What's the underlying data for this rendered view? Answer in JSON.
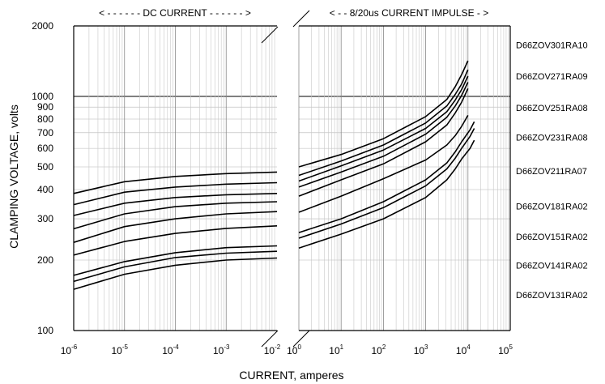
{
  "chart_data": {
    "type": "line",
    "title": "",
    "xlabel": "CURRENT, amperes",
    "ylabel": "CLAMPING VOLTAGE, volts",
    "y_scale": "log",
    "ylim": [
      100,
      2000
    ],
    "x_scale": "log",
    "grid": true,
    "regions": {
      "dc": {
        "header": "< - - - - - - DC CURRENT - - - - - - >",
        "xlim_exp": [
          -6,
          -2
        ]
      },
      "impulse": {
        "header": "< - - 8/20us CURRENT IMPULSE - >",
        "xlim_exp": [
          0,
          5
        ]
      }
    },
    "y_tick_labels": [
      {
        "value": 100,
        "label": "100"
      },
      {
        "value": 200,
        "label": "200"
      },
      {
        "value": 300,
        "label": "300"
      },
      {
        "value": 400,
        "label": "400"
      },
      {
        "value": 500,
        "label": "500"
      },
      {
        "value": 600,
        "label": "600"
      },
      {
        "value": 700,
        "label": "700"
      },
      {
        "value": 800,
        "label": "800"
      },
      {
        "value": 900,
        "label": "900"
      },
      {
        "value": 1000,
        "label": "1000"
      },
      {
        "value": 2000,
        "label": "2000"
      }
    ],
    "x_tick_labels": [
      {
        "region": "dc",
        "exp": -6,
        "base": "10",
        "sup": "-6"
      },
      {
        "region": "dc",
        "exp": -5,
        "base": "10",
        "sup": "-5"
      },
      {
        "region": "dc",
        "exp": -4,
        "base": "10",
        "sup": "-4"
      },
      {
        "region": "dc",
        "exp": -3,
        "base": "10",
        "sup": "-3"
      },
      {
        "region": "dc",
        "exp": -2,
        "base": "10",
        "sup": "-2"
      },
      {
        "region": "impulse",
        "exp": 0,
        "base": "10",
        "sup": "0"
      },
      {
        "region": "impulse",
        "exp": 1,
        "base": "10",
        "sup": "1"
      },
      {
        "region": "impulse",
        "exp": 2,
        "base": "10",
        "sup": "2"
      },
      {
        "region": "impulse",
        "exp": 3,
        "base": "10",
        "sup": "3"
      },
      {
        "region": "impulse",
        "exp": 4,
        "base": "10",
        "sup": "4"
      },
      {
        "region": "impulse",
        "exp": 5,
        "base": "10",
        "sup": "5"
      }
    ],
    "series_labels": [
      {
        "text": "D66ZOV301RA10",
        "voltage": 1660
      },
      {
        "text": "D66ZOV271RA09",
        "voltage": 1220
      },
      {
        "text": "D66ZOV251RA08",
        "voltage": 895
      },
      {
        "text": "D66ZOV231RA08",
        "voltage": 670
      },
      {
        "text": "D66ZOV211RA07",
        "voltage": 480
      },
      {
        "text": "D66ZOV181RA02",
        "voltage": 340
      },
      {
        "text": "D66ZOV151RA02",
        "voltage": 252
      },
      {
        "text": "D66ZOV141RA02",
        "voltage": 190
      },
      {
        "text": "D66ZOV131RA02",
        "voltage": 142
      }
    ],
    "series": [
      {
        "dc": [
          [
            -6,
            385
          ],
          [
            -5,
            432
          ],
          [
            -4,
            455
          ],
          [
            -3,
            468
          ],
          [
            -2,
            475
          ]
        ],
        "impulse": [
          [
            0,
            500
          ],
          [
            1,
            565
          ],
          [
            2,
            660
          ],
          [
            3,
            820
          ],
          [
            3.5,
            970
          ],
          [
            3.7,
            1100
          ],
          [
            3.85,
            1240
          ],
          [
            4,
            1420
          ]
        ]
      },
      {
        "dc": [
          [
            -6,
            345
          ],
          [
            -5,
            390
          ],
          [
            -4,
            410
          ],
          [
            -3,
            422
          ],
          [
            -2,
            428
          ]
        ],
        "impulse": [
          [
            0,
            460
          ],
          [
            1,
            530
          ],
          [
            2,
            620
          ],
          [
            3,
            770
          ],
          [
            3.5,
            910
          ],
          [
            3.7,
            1020
          ],
          [
            3.85,
            1130
          ],
          [
            4,
            1300
          ]
        ]
      },
      {
        "dc": [
          [
            -6,
            310
          ],
          [
            -5,
            350
          ],
          [
            -4,
            370
          ],
          [
            -3,
            380
          ],
          [
            -2,
            385
          ]
        ],
        "impulse": [
          [
            0,
            435
          ],
          [
            1,
            505
          ],
          [
            2,
            590
          ],
          [
            3,
            730
          ],
          [
            3.5,
            860
          ],
          [
            3.7,
            965
          ],
          [
            3.85,
            1070
          ],
          [
            4,
            1220
          ]
        ]
      },
      {
        "dc": [
          [
            -6,
            272
          ],
          [
            -5,
            315
          ],
          [
            -4,
            338
          ],
          [
            -3,
            350
          ],
          [
            -2,
            355
          ]
        ],
        "impulse": [
          [
            0,
            410
          ],
          [
            1,
            475
          ],
          [
            2,
            555
          ],
          [
            3,
            690
          ],
          [
            3.5,
            815
          ],
          [
            3.7,
            910
          ],
          [
            3.85,
            1010
          ],
          [
            4,
            1150
          ]
        ]
      },
      {
        "dc": [
          [
            -6,
            238
          ],
          [
            -5,
            278
          ],
          [
            -4,
            300
          ],
          [
            -3,
            315
          ],
          [
            -2,
            322
          ]
        ],
        "impulse": [
          [
            0,
            375
          ],
          [
            1,
            440
          ],
          [
            2,
            515
          ],
          [
            3,
            640
          ],
          [
            3.5,
            755
          ],
          [
            3.7,
            850
          ],
          [
            3.85,
            945
          ],
          [
            4,
            1080
          ]
        ]
      },
      {
        "dc": [
          [
            -6,
            210
          ],
          [
            -5,
            240
          ],
          [
            -4,
            260
          ],
          [
            -3,
            273
          ],
          [
            -2,
            280
          ]
        ],
        "impulse": [
          [
            0,
            320
          ],
          [
            1,
            375
          ],
          [
            2,
            445
          ],
          [
            3,
            535
          ],
          [
            3.5,
            620
          ],
          [
            3.7,
            680
          ],
          [
            3.85,
            745
          ],
          [
            4,
            830
          ]
        ]
      },
      {
        "dc": [
          [
            -6,
            172
          ],
          [
            -5,
            197
          ],
          [
            -4,
            215
          ],
          [
            -3,
            226
          ],
          [
            -2,
            230
          ]
        ],
        "impulse": [
          [
            0,
            262
          ],
          [
            1,
            300
          ],
          [
            2,
            355
          ],
          [
            3,
            440
          ],
          [
            3.5,
            520
          ],
          [
            3.7,
            580
          ],
          [
            3.85,
            640
          ],
          [
            4.05,
            720
          ],
          [
            4.15,
            780
          ]
        ]
      },
      {
        "dc": [
          [
            -6,
            162
          ],
          [
            -5,
            187
          ],
          [
            -4,
            205
          ],
          [
            -3,
            214
          ],
          [
            -2,
            218
          ]
        ],
        "impulse": [
          [
            0,
            248
          ],
          [
            1,
            285
          ],
          [
            2,
            335
          ],
          [
            3,
            415
          ],
          [
            3.5,
            490
          ],
          [
            3.7,
            545
          ],
          [
            3.85,
            600
          ],
          [
            4.05,
            675
          ],
          [
            4.15,
            730
          ]
        ]
      },
      {
        "dc": [
          [
            -6,
            150
          ],
          [
            -5,
            174
          ],
          [
            -4,
            190
          ],
          [
            -3,
            200
          ],
          [
            -2,
            204
          ]
        ],
        "impulse": [
          [
            0,
            225
          ],
          [
            1,
            258
          ],
          [
            2,
            300
          ],
          [
            3,
            370
          ],
          [
            3.5,
            440
          ],
          [
            3.7,
            490
          ],
          [
            3.85,
            540
          ],
          [
            4.05,
            600
          ],
          [
            4.15,
            650
          ]
        ]
      }
    ]
  }
}
